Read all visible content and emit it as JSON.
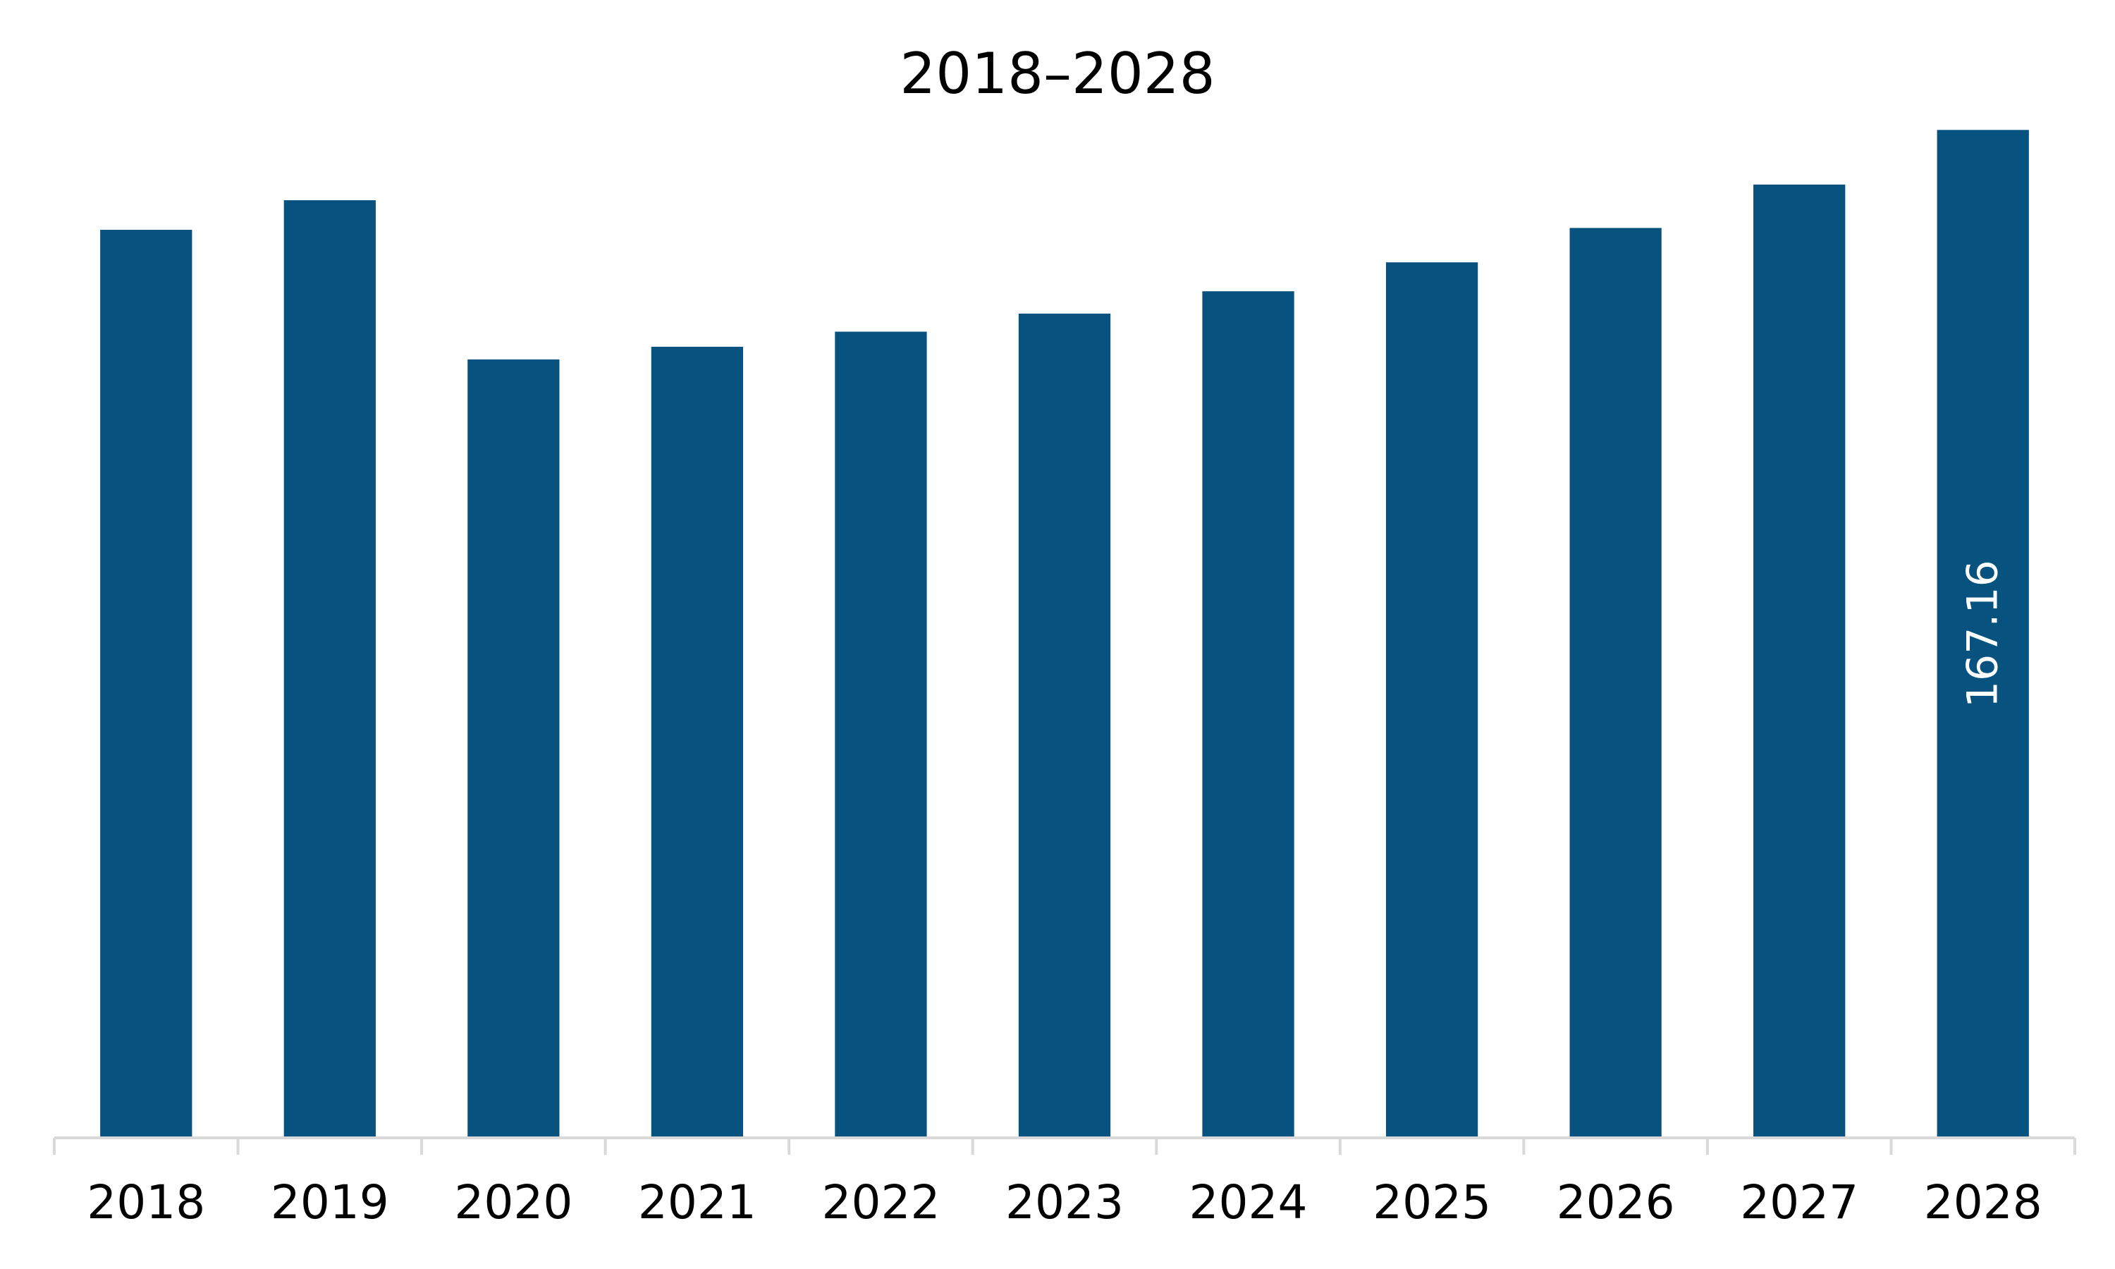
{
  "chart_data": {
    "type": "bar",
    "title": "2018–2028",
    "categories": [
      "2018",
      "2019",
      "2020",
      "2021",
      "2022",
      "2023",
      "2024",
      "2025",
      "2026",
      "2027",
      "2028"
    ],
    "values": [
      150.6,
      155.5,
      129.1,
      131.2,
      133.7,
      136.7,
      140.4,
      145.2,
      150.9,
      158.1,
      167.16
    ],
    "data_labels": [
      "",
      "",
      "",
      "",
      "",
      "",
      "",
      "",
      "",
      "",
      "167.16"
    ],
    "xlabel": "",
    "ylabel": "",
    "ylim": [
      0,
      170
    ],
    "grid": false,
    "legend": "none",
    "colors": {
      "bar": "#08527f",
      "axis": "#d9d9d9",
      "label_on_bar": "#ffffff"
    }
  }
}
